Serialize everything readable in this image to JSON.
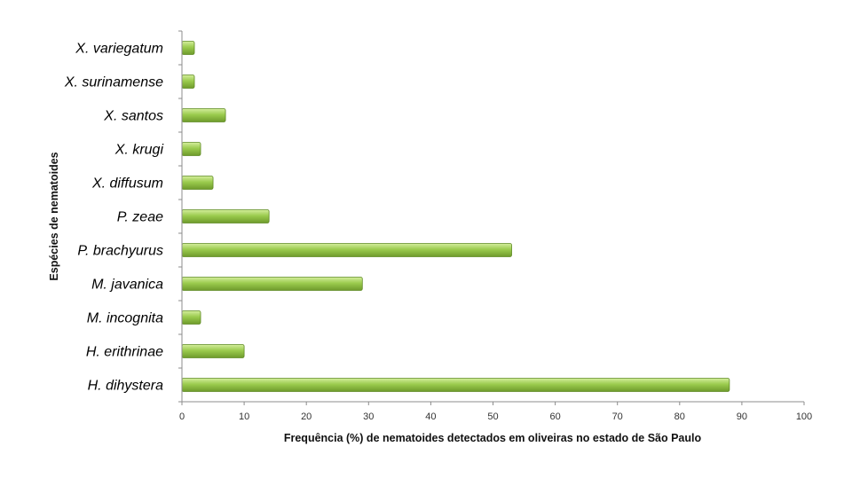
{
  "chart_data": {
    "type": "bar",
    "orientation": "horizontal",
    "categories": [
      "H. dihystera",
      "H. erithrinae",
      "M. incognita",
      "M. javanica",
      "P. brachyurus",
      "P. zeae",
      "X. diffusum",
      "X. krugi",
      "X. santos",
      "X. surinamense",
      "X. variegatum"
    ],
    "values": [
      88,
      10,
      3,
      29,
      53,
      14,
      5,
      3,
      7,
      2,
      2
    ],
    "xlabel": "Frequência (%) de nematoides detectados em oliveiras no estado de São Paulo",
    "ylabel": "Espécies de nematoides",
    "xlim": [
      0,
      100
    ],
    "xticks": [
      0,
      10,
      20,
      30,
      40,
      50,
      60,
      70,
      80,
      90,
      100
    ],
    "grid": false,
    "colors": {
      "bar_light": "#d4ee9c",
      "bar_mid": "#9bcb4e",
      "bar_dark": "#6e9a2b",
      "bar_edge": "#5f8a24"
    }
  }
}
